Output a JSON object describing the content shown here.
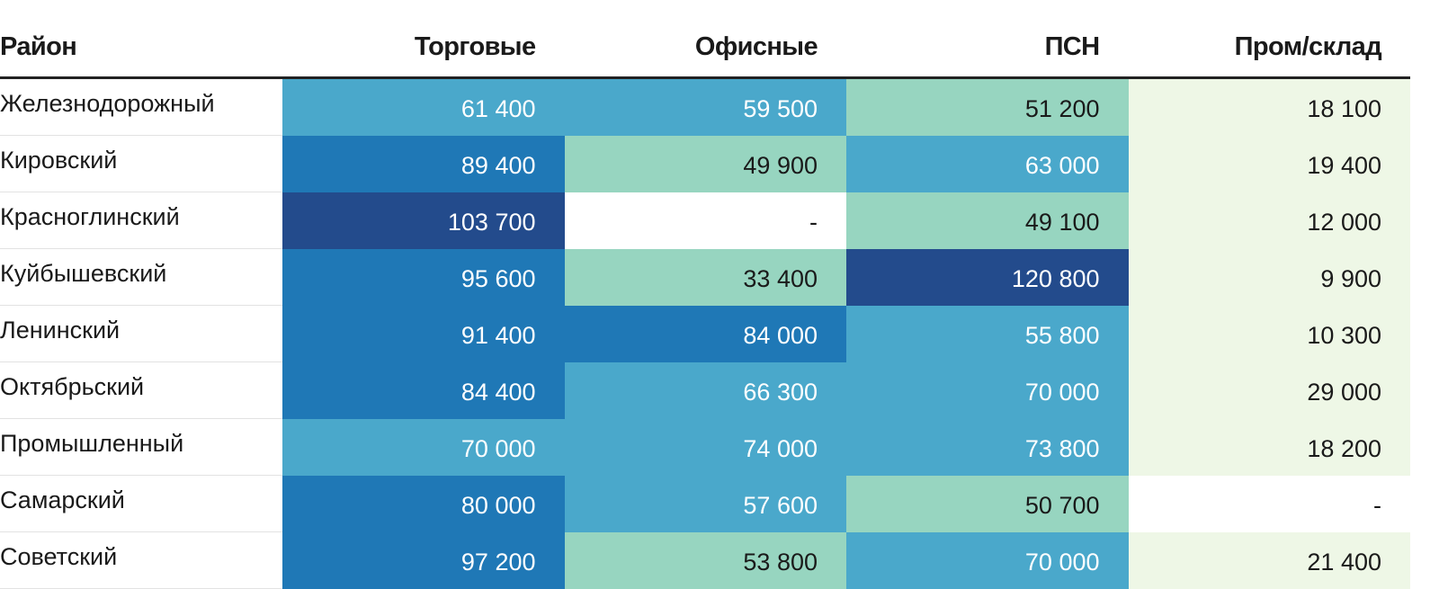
{
  "chart_data": {
    "type": "table",
    "columns": [
      "Район",
      "Торговые",
      "Офисные",
      "ПСН",
      "Пром/склад"
    ],
    "rows": [
      {
        "district": "Железнодорожный",
        "values": [
          "61 400",
          "59 500",
          "51 200",
          "18 100"
        ]
      },
      {
        "district": "Кировский",
        "values": [
          "89 400",
          "49 900",
          "63 000",
          "19 400"
        ]
      },
      {
        "district": "Красноглинский",
        "values": [
          "103 700",
          "-",
          "49 100",
          "12 000"
        ]
      },
      {
        "district": "Куйбышевский",
        "values": [
          "95 600",
          "33 400",
          "120 800",
          "9 900"
        ]
      },
      {
        "district": "Ленинский",
        "values": [
          "91 400",
          "84 000",
          "55 800",
          "10 300"
        ]
      },
      {
        "district": "Октябрьский",
        "values": [
          "84 400",
          "66 300",
          "70 000",
          "29 000"
        ]
      },
      {
        "district": "Промышленный",
        "values": [
          "70 000",
          "74 000",
          "73 800",
          "18 200"
        ]
      },
      {
        "district": "Самарский",
        "values": [
          "80 000",
          "57 600",
          "50 700",
          "-"
        ]
      },
      {
        "district": "Советский",
        "values": [
          "97 200",
          "53 800",
          "70 000",
          "21 400"
        ]
      }
    ],
    "color_scale": {
      "none": "#ffffff",
      "very_low": "#eef7e6",
      "low": "#97d5c0",
      "mid": "#4aa8cb",
      "high": "#1f78b6",
      "very_high": "#234b8c"
    }
  }
}
